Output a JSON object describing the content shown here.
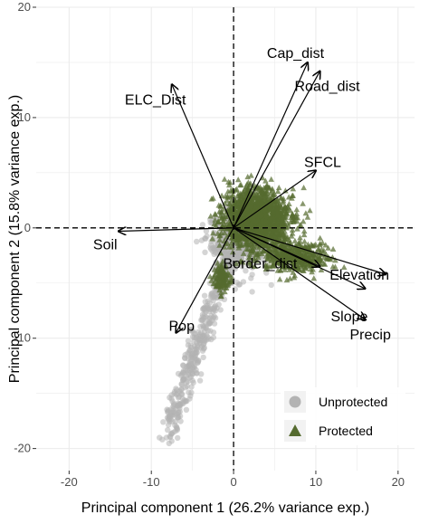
{
  "chart_data": {
    "type": "scatter",
    "xlabel": "Principal component 1 (26.2% variance exp.)",
    "ylabel": "Principal component 2 (15.8% variance exp.)",
    "xlim": [
      -24,
      22
    ],
    "ylim": [
      -22,
      20
    ],
    "x_ticks": [
      -20,
      -10,
      0,
      10,
      20
    ],
    "y_ticks": [
      -20,
      -10,
      0,
      10,
      20
    ],
    "grid": true,
    "reference_lines": {
      "x": 0,
      "y": 0,
      "style": "dashed"
    },
    "legend_position": "bottom-right",
    "series": [
      {
        "name": "Unprotected",
        "marker": "circle",
        "color": "#b3b3b3"
      },
      {
        "name": "Protected",
        "marker": "triangle",
        "color": "#556b2f"
      }
    ],
    "loadings": [
      {
        "label": "Cap_dist",
        "x": 9,
        "y": 15
      },
      {
        "label": "Road_dist",
        "x": 10.5,
        "y": 14.2
      },
      {
        "label": "ELC_Dist",
        "x": -7.5,
        "y": 13
      },
      {
        "label": "SFCL",
        "x": 10,
        "y": 5.2
      },
      {
        "label": "Soil",
        "x": -14,
        "y": -0.3
      },
      {
        "label": "Border_dist",
        "x": 10.5,
        "y": -3.5
      },
      {
        "label": "Elevation",
        "x": 18.5,
        "y": -4.2
      },
      {
        "label": "Slope",
        "x": 16,
        "y": -5.5
      },
      {
        "label": "Precip",
        "x": 16,
        "y": -8.3
      },
      {
        "label": "Pop",
        "x": -7,
        "y": -9.5
      }
    ]
  }
}
